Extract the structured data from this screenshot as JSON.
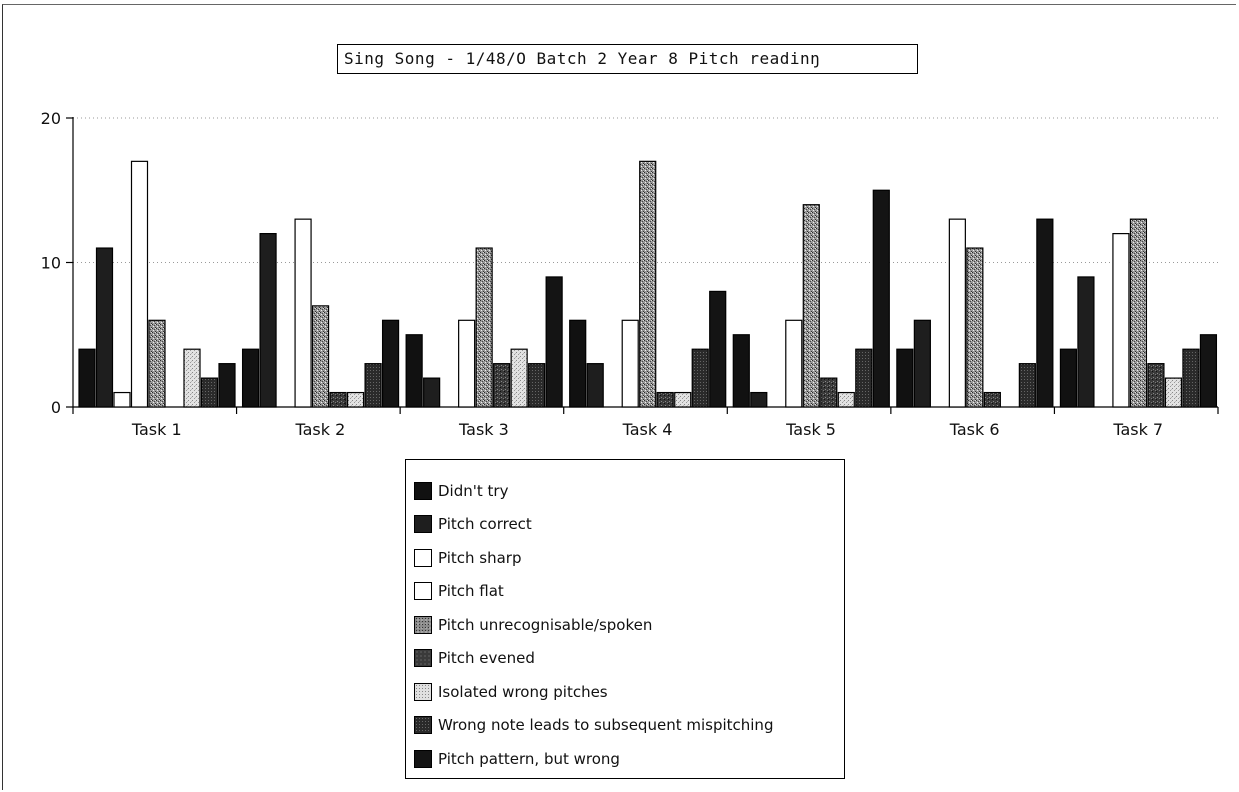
{
  "chart_data": {
    "type": "bar",
    "title": "Sing Song - 1/48/O  Batch 2 Year 8  Pitch readinŋ",
    "xlabel": "",
    "ylabel": "",
    "ylim": [
      0,
      20
    ],
    "yticks": [
      0,
      10,
      20
    ],
    "grid": true,
    "legend_position": "bottom",
    "categories": [
      "Task 1",
      "Task 2",
      "Task 3",
      "Task 4",
      "Task 5",
      "Task 6",
      "Task 7"
    ],
    "series": [
      {
        "name": "Didn't try",
        "values": [
          4,
          4,
          5,
          6,
          5,
          4,
          4
        ],
        "color": "#111111",
        "pattern": "solid"
      },
      {
        "name": "Pitch correct",
        "values": [
          11,
          12,
          2,
          3,
          1,
          6,
          9
        ],
        "color": "#1e1e1e",
        "pattern": "solid"
      },
      {
        "name": "Pitch sharp",
        "values": [
          1,
          0,
          0,
          0,
          0,
          0,
          0
        ],
        "color": "#ffffff",
        "pattern": "white"
      },
      {
        "name": "Pitch flat",
        "values": [
          17,
          13,
          6,
          6,
          6,
          13,
          12
        ],
        "color": "#ffffff",
        "pattern": "white"
      },
      {
        "name": "Pitch unrecognisable/spoken",
        "values": [
          6,
          7,
          11,
          17,
          14,
          11,
          13
        ],
        "color": "#7a7a7a",
        "pattern": "speckle-mid"
      },
      {
        "name": "Pitch evened",
        "values": [
          0,
          1,
          3,
          1,
          2,
          1,
          3
        ],
        "color": "#3c3c3c",
        "pattern": "speckle-dark"
      },
      {
        "name": "Isolated wrong pitches",
        "values": [
          4,
          1,
          4,
          1,
          1,
          0,
          2
        ],
        "color": "#d2d2d2",
        "pattern": "speckle-light"
      },
      {
        "name": "Wrong note leads to subsequent mispitching",
        "values": [
          2,
          3,
          3,
          4,
          4,
          3,
          4
        ],
        "color": "#2a2a2a",
        "pattern": "speckle-dark2"
      },
      {
        "name": "Pitch pattern, but wrong",
        "values": [
          3,
          6,
          9,
          8,
          15,
          13,
          5
        ],
        "color": "#141414",
        "pattern": "solid"
      }
    ]
  }
}
